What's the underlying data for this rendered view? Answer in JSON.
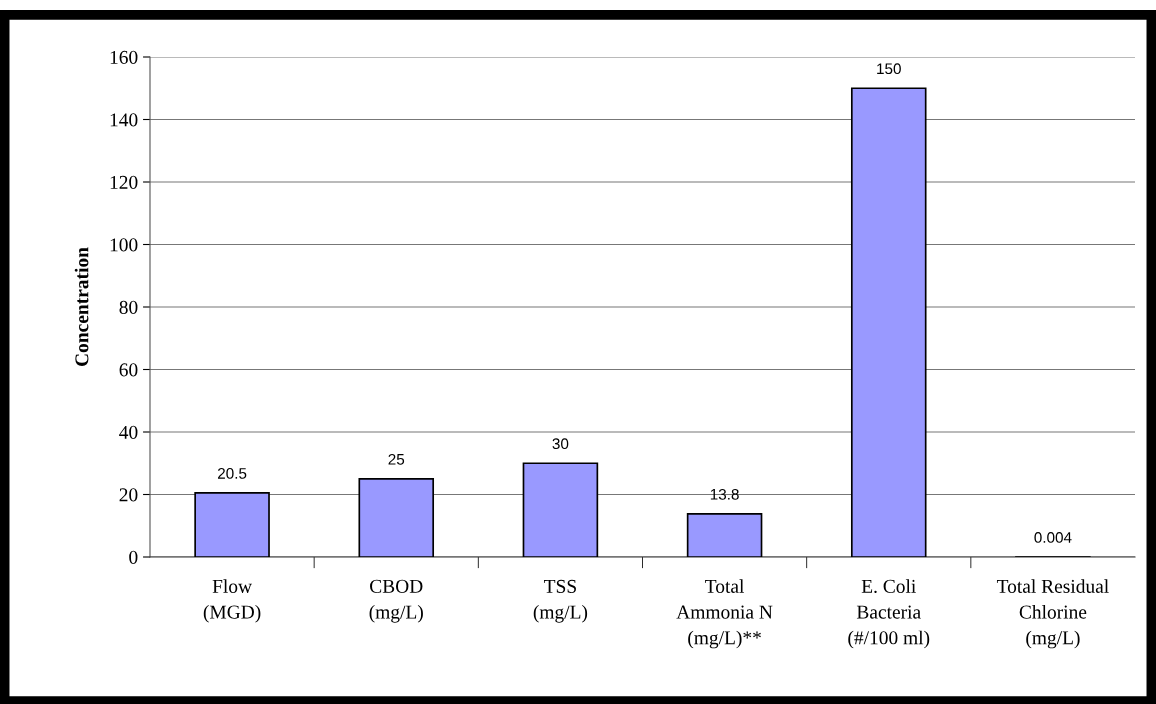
{
  "chart_data": {
    "type": "bar",
    "ylabel": "Concentration",
    "categories": [
      "Flow\n(MGD)",
      "CBOD\n(mg/L)",
      "TSS\n(mg/L)",
      "Total\nAmmonia N\n(mg/L)**",
      "E. Coli\nBacteria\n(#/100 ml)",
      "Total Residual\nChlorine\n(mg/L)"
    ],
    "values": [
      20.5,
      25,
      30,
      13.8,
      150,
      0.004
    ],
    "color": "#9999ff",
    "ylim": [
      0,
      160
    ],
    "yticks": [
      0,
      20,
      40,
      60,
      80,
      100,
      120,
      140,
      160
    ],
    "grid": "y",
    "data_labels": true,
    "legend": false
  }
}
